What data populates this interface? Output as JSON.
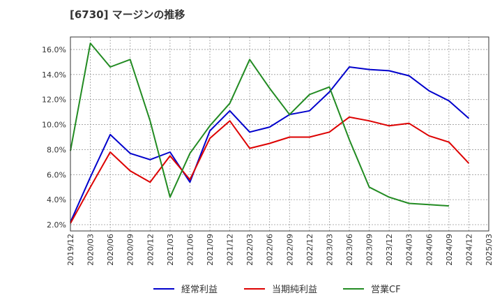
{
  "title": "[6730]  マージンの推移",
  "chart_data": {
    "type": "line",
    "x": [
      "2019/12",
      "2020/03",
      "2020/06",
      "2020/09",
      "2020/12",
      "2021/03",
      "2021/06",
      "2021/09",
      "2021/12",
      "2022/03",
      "2022/06",
      "2022/09",
      "2022/12",
      "2023/03",
      "2023/06",
      "2023/09",
      "2023/12",
      "2024/03",
      "2024/06",
      "2024/09",
      "2024/12",
      "2025/03"
    ],
    "ylim": [
      1.5,
      17.0
    ],
    "yticks": [
      2.0,
      4.0,
      6.0,
      8.0,
      10.0,
      12.0,
      14.0,
      16.0
    ],
    "ytick_labels": [
      "2.0%",
      "4.0%",
      "6.0%",
      "8.0%",
      "10.0%",
      "12.0%",
      "14.0%",
      "16.0%"
    ],
    "grid": true,
    "legend_position": "bottom",
    "series": [
      {
        "name": "経常利益",
        "color": "#0000cc",
        "values": [
          2.2,
          5.8,
          9.2,
          7.7,
          7.2,
          7.8,
          5.4,
          9.5,
          11.1,
          9.4,
          9.8,
          10.8,
          11.1,
          12.6,
          14.6,
          14.4,
          14.3,
          13.9,
          12.7,
          11.9,
          10.5,
          null
        ]
      },
      {
        "name": "当期純利益",
        "color": "#dd0000",
        "values": [
          2.1,
          5.0,
          7.8,
          6.3,
          5.4,
          7.5,
          5.6,
          8.9,
          10.3,
          8.1,
          8.5,
          9.0,
          9.0,
          9.4,
          10.6,
          10.3,
          9.9,
          10.1,
          9.1,
          8.6,
          6.9,
          null
        ]
      },
      {
        "name": "営業CF",
        "color": "#228b22",
        "values": [
          7.9,
          16.5,
          14.6,
          15.2,
          10.3,
          4.2,
          7.7,
          9.9,
          11.7,
          15.2,
          12.9,
          10.8,
          12.4,
          13.0,
          8.8,
          5.0,
          4.2,
          3.7,
          3.6,
          3.5,
          null,
          null
        ]
      }
    ]
  }
}
